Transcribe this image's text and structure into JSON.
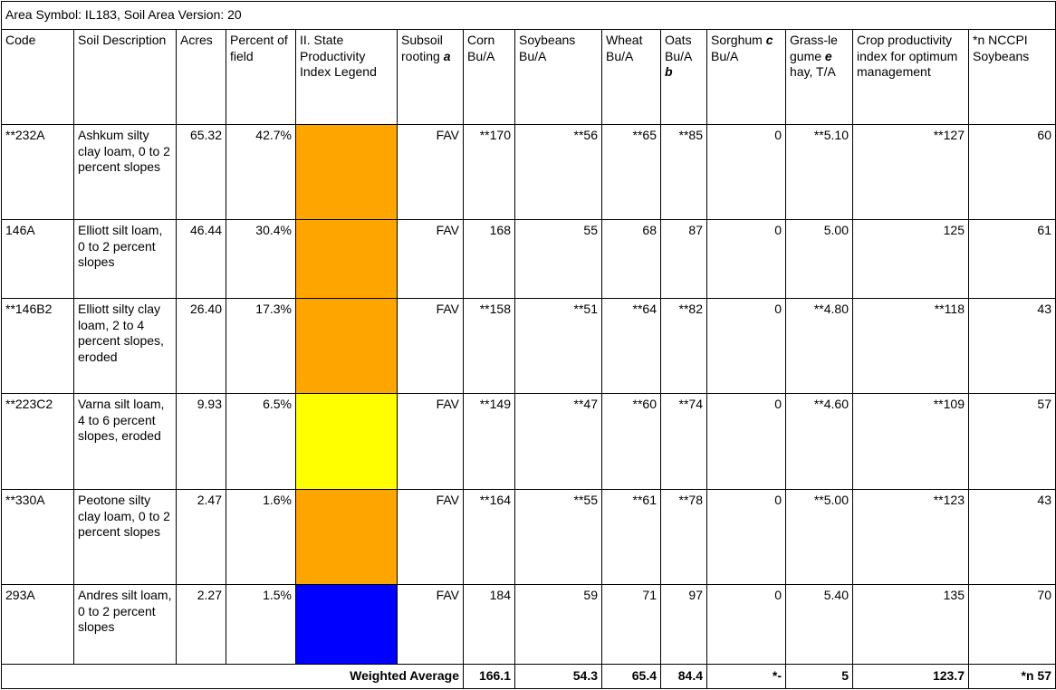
{
  "title": "Area Symbol: IL183, Soil Area Version: 20",
  "header": [
    [
      "Code"
    ],
    [
      "Soil Description"
    ],
    [
      "Acres"
    ],
    [
      "Percent of field"
    ],
    [
      "II. State Productivity Index Legend"
    ],
    [
      "Subsoil rooting ",
      "a"
    ],
    [
      "Corn Bu/A"
    ],
    [
      "Soybeans Bu/A"
    ],
    [
      "Wheat Bu/A"
    ],
    [
      "Oats Bu/A ",
      "b"
    ],
    [
      "Sorghum ",
      "c",
      " Bu/A"
    ],
    [
      "Grass-le gume ",
      "e",
      " hay, T/A"
    ],
    [
      "Crop productivity index for optimum management"
    ],
    [
      "*n NCCPI Soybeans"
    ]
  ],
  "rows": [
    {
      "cells": [
        "**232A",
        "Ashkum silty clay loam, 0 to 2 percent slopes",
        "65.32",
        "42.7%",
        "FAV",
        "**170",
        "**56",
        "**65",
        "**85",
        "0",
        "**5.10",
        "**127",
        "60"
      ],
      "color": "#ffa500"
    },
    {
      "cells": [
        "146A",
        "Elliott silt loam, 0 to 2 percent slopes",
        "46.44",
        "30.4%",
        "FAV",
        "168",
        "55",
        "68",
        "87",
        "0",
        "5.00",
        "125",
        "61"
      ],
      "color": "#ffa500"
    },
    {
      "cells": [
        "**146B2",
        "Elliott silty clay loam, 2 to 4 percent slopes, eroded",
        "26.40",
        "17.3%",
        "FAV",
        "**158",
        "**51",
        "**64",
        "**82",
        "0",
        "**4.80",
        "**118",
        "43"
      ],
      "color": "#ffa500"
    },
    {
      "cells": [
        "**223C2",
        "Varna silt loam, 4 to 6 percent slopes, eroded",
        "9.93",
        "6.5%",
        "FAV",
        "**149",
        "**47",
        "**60",
        "**74",
        "0",
        "**4.60",
        "**109",
        "57"
      ],
      "color": "#ffff00"
    },
    {
      "cells": [
        "**330A",
        "Peotone silty clay loam, 0 to 2 percent slopes",
        "2.47",
        "1.6%",
        "FAV",
        "**164",
        "**55",
        "**61",
        "**78",
        "0",
        "**5.00",
        "**123",
        "43"
      ],
      "color": "#ffa500"
    },
    {
      "cells": [
        "293A",
        "Andres silt loam, 0 to 2 percent slopes",
        "2.27",
        "1.5%",
        "FAV",
        "184",
        "59",
        "71",
        "97",
        "0",
        "5.40",
        "135",
        "70"
      ],
      "color": "#0000ff"
    }
  ],
  "footer": {
    "label": "Weighted Average",
    "values": [
      "166.1",
      "54.3",
      "65.4",
      "84.4",
      "*-",
      "5",
      "123.7",
      "*n 57"
    ]
  }
}
